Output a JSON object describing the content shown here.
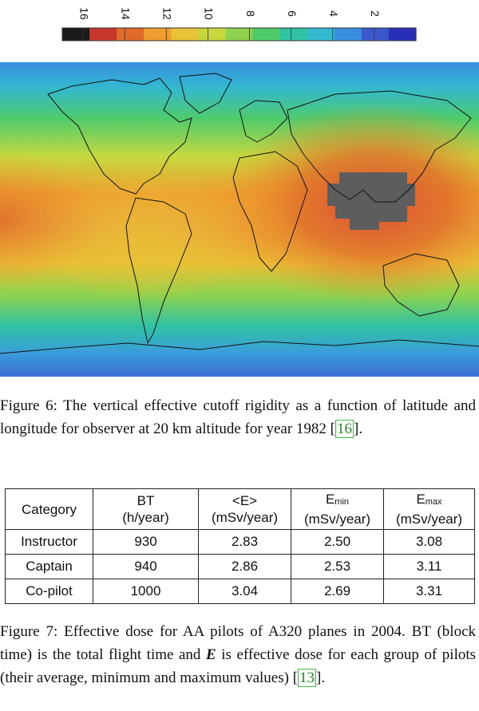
{
  "colorbar": {
    "ticks": [
      "16",
      "14",
      "12",
      "10",
      "8",
      "6",
      "4",
      "2"
    ],
    "tick_values": [
      16,
      14,
      12,
      10,
      8,
      6,
      4,
      2
    ],
    "range": [
      0,
      17
    ],
    "colors": [
      "#1a1a1a",
      "#c8372b",
      "#e06a2a",
      "#ee9d2e",
      "#e9c235",
      "#c7d83f",
      "#8dd24f",
      "#4fcb6b",
      "#2fc2a3",
      "#33b8d0",
      "#3a8ee0",
      "#3b58cf",
      "#2a2fb8"
    ]
  },
  "figure6": {
    "label": "Figure 6:",
    "text": "The vertical effective cutoff rigidity as a function of latitude and longitude for observer at 20 km altitude for year 1982",
    "ref": "16",
    "end": "."
  },
  "table": {
    "headers": [
      {
        "line1": "Category",
        "line2": ""
      },
      {
        "line1": "BT",
        "line2": "(h/year)"
      },
      {
        "line1": "<E>",
        "line2": "(mSv/year)"
      },
      {
        "line1": "E",
        "sub": "min",
        "line2": "(mSv/year)"
      },
      {
        "line1": "E",
        "sub": "max",
        "line2": "(mSv/year)"
      }
    ],
    "rows": [
      [
        "Instructor",
        "930",
        "2.83",
        "2.50",
        "3.08"
      ],
      [
        "Captain",
        "940",
        "2.86",
        "2.53",
        "3.11"
      ],
      [
        "Co-pilot",
        "1000",
        "3.04",
        "2.69",
        "3.31"
      ]
    ]
  },
  "figure7": {
    "label": "Figure 7:",
    "text_a": "Effective dose for AA pilots of A320 planes in 2004. BT (block time) is the total flight time and",
    "symbol": "E",
    "text_b": "is effective dose for each group of pilots (their average, minimum and maximum values)",
    "ref": "13",
    "end": "."
  }
}
